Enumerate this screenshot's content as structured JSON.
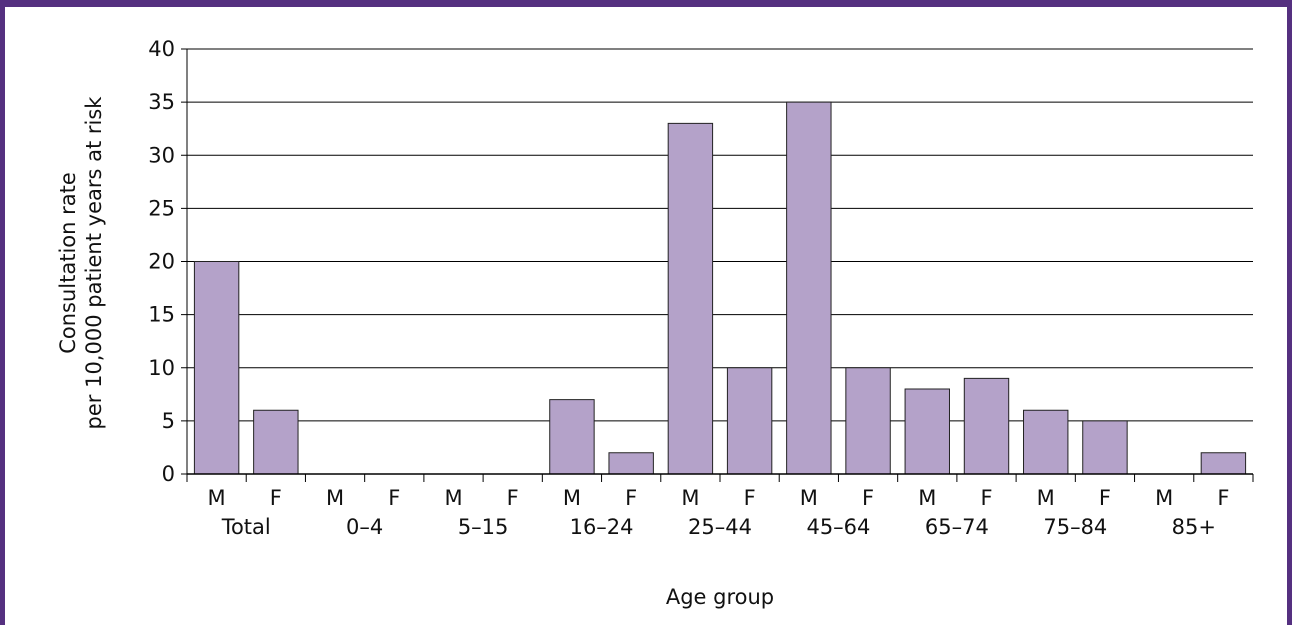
{
  "colors": {
    "frame": "#553080",
    "bar": "#b4a2c9",
    "bar_stroke": "#222222",
    "grid": "#000000"
  },
  "chart_data": {
    "type": "bar",
    "xlabel": "Age group",
    "ylabel_lines": [
      "Consultation rate",
      "per 10,000 patient years at risk"
    ],
    "ylim": [
      0,
      40
    ],
    "yticks": [
      0,
      5,
      10,
      15,
      20,
      25,
      30,
      35,
      40
    ],
    "grid": true,
    "groups": [
      "Total",
      "0–4",
      "5–15",
      "16–24",
      "25–44",
      "45–64",
      "65–74",
      "75–84",
      "85+"
    ],
    "sub_categories": [
      "M",
      "F"
    ],
    "values": [
      20,
      6,
      0,
      0,
      0,
      0,
      7,
      2,
      33,
      10,
      35,
      10,
      8,
      9,
      6,
      5,
      0,
      2
    ]
  }
}
